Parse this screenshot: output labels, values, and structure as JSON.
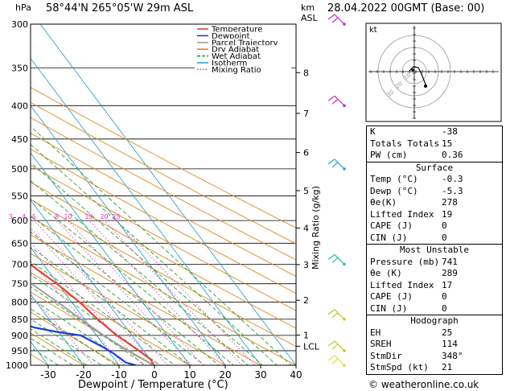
{
  "header": {
    "hpa_unit": "hPa",
    "location": "58°44'N  265°05'W  29m  ASL",
    "km_unit": "km",
    "asl_unit": "ASL",
    "datetime": "28.04.2022  00GMT  (Base: 00)"
  },
  "axes": {
    "xlabel": "Dewpoint / Temperature (°C)",
    "mixing_ratio_label": "Mixing Ratio (g/kg)",
    "pressure_levels": [
      300,
      350,
      400,
      450,
      500,
      550,
      600,
      650,
      700,
      750,
      800,
      850,
      900,
      950,
      1000
    ],
    "pressure_labels": [
      "300",
      "350",
      "400",
      "450",
      "500",
      "550",
      "600",
      "650",
      "700",
      "750",
      "800",
      "850",
      "900",
      "950",
      "1000"
    ],
    "temp_ticks": [
      "-30",
      "-20",
      "-10",
      "0",
      "10",
      "20",
      "30",
      "40"
    ],
    "temp_values": [
      -30,
      -20,
      -10,
      0,
      10,
      20,
      30,
      40
    ],
    "km_labels": [
      "8",
      "7",
      "6",
      "5",
      "4",
      "3",
      "2",
      "1",
      "LCL"
    ],
    "mixing_ratio_labels": [
      "1",
      "2",
      "3",
      "4",
      "5",
      "8",
      "10",
      "15",
      "20",
      "25"
    ]
  },
  "legend": [
    "Temperature",
    "Dewpoint",
    "Parcel Trajectory",
    "Dry Adiabat",
    "Wet Adiabat",
    "Isotherm",
    "Mixing Ratio"
  ],
  "colors": {
    "temperature": "#e8413a",
    "dewpoint": "#1f3fd8",
    "parcel": "#a0a0a0",
    "dry_adiabat": "#e08a1e",
    "wet_adiabat": "#2ca02c",
    "isotherm": "#2aa4d6",
    "mixing_ratio": "#d63ab8",
    "wind": "#c8c820"
  },
  "chart_data": {
    "type": "line",
    "title": "58°44'N  265°05'W  29m  ASL",
    "xlabel": "Dewpoint / Temperature (°C)",
    "ylabel": "hPa",
    "xlim": [
      -35,
      40
    ],
    "ylim": [
      1000,
      300
    ],
    "y_scale": "log",
    "series": [
      {
        "name": "Temperature",
        "pressure": [
          1000,
          980,
          950,
          925,
          900,
          850,
          800,
          750,
          700,
          650,
          600,
          550,
          500,
          450,
          400,
          350,
          300
        ],
        "values": [
          -0.3,
          0.2,
          -1.3,
          -2.8,
          -4.3,
          -6.3,
          -7.8,
          -10.3,
          -13.8,
          -17.3,
          -20.8,
          -25.3,
          -29.8,
          -35.3,
          -40.8,
          -47.3,
          -52.8
        ]
      },
      {
        "name": "Dewpoint",
        "pressure": [
          1000,
          990,
          960,
          940,
          925,
          900,
          890,
          875,
          850,
          800,
          760,
          725,
          700,
          690,
          680,
          660,
          650,
          635,
          625,
          610,
          600,
          580,
          550,
          500,
          450,
          400,
          350,
          300
        ],
        "values": [
          -5.3,
          -7.5,
          -9.0,
          -10.5,
          -12.0,
          -14.5,
          -20,
          -26,
          -31,
          -29,
          -31,
          -33,
          -32,
          -36,
          -40,
          -28,
          -24,
          -22,
          -20,
          -15,
          -16,
          -14,
          -12.5,
          -19,
          -24,
          -29,
          -33,
          -33
        ]
      },
      {
        "name": "Parcel Trajectory",
        "pressure": [
          1000,
          950,
          900,
          850,
          800,
          750,
          700,
          650,
          600,
          550,
          500,
          450,
          400,
          350,
          300
        ],
        "values": [
          -0.3,
          -4.5,
          -8.0,
          -11.0,
          -14.0,
          -17.5,
          -21.0,
          -24.5,
          -28.5,
          -32.5,
          -37.0,
          -42.0,
          -47.0,
          -53.0,
          -59.0
        ]
      }
    ],
    "grid": true,
    "legend_position": "top-left"
  },
  "indices": [
    {
      "label": "K",
      "value": "-38"
    },
    {
      "label": "Totals Totals",
      "value": "15"
    },
    {
      "label": "PW (cm)",
      "value": "0.36"
    }
  ],
  "surface": {
    "title": "Surface",
    "rows": [
      {
        "label": "Temp (°C)",
        "value": "-0.3"
      },
      {
        "label": "Dewp (°C)",
        "value": "-5.3"
      },
      {
        "label": "θe(K)",
        "value": "278"
      },
      {
        "label": "Lifted Index",
        "value": "19"
      },
      {
        "label": "CAPE (J)",
        "value": "0"
      },
      {
        "label": "CIN (J)",
        "value": "0"
      }
    ]
  },
  "most_unstable": {
    "title": "Most Unstable",
    "rows": [
      {
        "label": "Pressure (mb)",
        "value": "741"
      },
      {
        "label": "θe (K)",
        "value": "289"
      },
      {
        "label": "Lifted Index",
        "value": "17"
      },
      {
        "label": "CAPE (J)",
        "value": "0"
      },
      {
        "label": "CIN (J)",
        "value": "0"
      }
    ]
  },
  "hodograph": {
    "title": "Hodograph",
    "unit_label": "kt",
    "ring_labels": [
      "10",
      "20",
      "30"
    ],
    "rows": [
      {
        "label": "EH",
        "value": "25"
      },
      {
        "label": "SREH",
        "value": "114"
      },
      {
        "label": "StmDir",
        "value": "348°"
      },
      {
        "label": "StmSpd (kt)",
        "value": "21"
      }
    ]
  },
  "footer": {
    "copyright": "© weatheronline.co.uk"
  }
}
